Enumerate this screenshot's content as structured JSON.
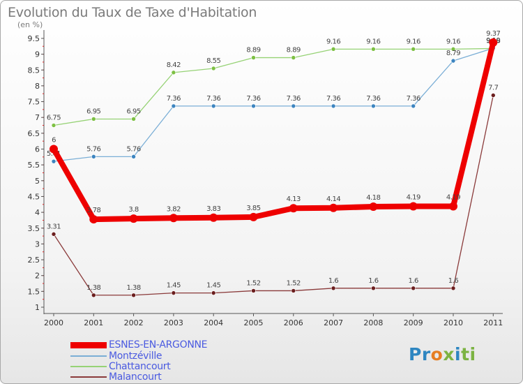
{
  "title": "Evolution du Taux de Taxe d'Habitation",
  "subtitle": "(en %)",
  "logo": {
    "letters": [
      "P",
      "r",
      "o",
      "x",
      "i",
      "t",
      "i"
    ],
    "colors": [
      "#2e86c1",
      "#2e86c1",
      "#e67e22",
      "#7cb342",
      "#2e86c1",
      "#7cb342",
      "#7cb342"
    ]
  },
  "chart_data": {
    "type": "line",
    "title": "Evolution du Taux de Taxe d'Habitation",
    "ylabel": "(en %)",
    "categories": [
      "2000",
      "2001",
      "2002",
      "2003",
      "2004",
      "2005",
      "2006",
      "2007",
      "2008",
      "2009",
      "2010",
      "2011"
    ],
    "ylim": [
      1,
      9.5
    ],
    "yticks": [
      "1",
      "1.5",
      "2",
      "2.5",
      "3",
      "3.5",
      "4",
      "4.5",
      "5",
      "5.5",
      "6",
      "6.5",
      "7",
      "7.5",
      "8",
      "8.5",
      "9",
      "9.5"
    ],
    "grid": false,
    "series": [
      {
        "name": "Chattancourt",
        "color": "#96d275",
        "marker": "#7dc043",
        "values": [
          6.75,
          6.95,
          6.95,
          8.42,
          8.55,
          8.89,
          8.89,
          9.16,
          9.16,
          9.16,
          9.16,
          9.18
        ],
        "labels": [
          "6.75",
          "6.95",
          "6.95",
          "8.42",
          "8.55",
          "8.89",
          "8.89",
          "9.16",
          "9.16",
          "9.16",
          "9.16",
          "9.18"
        ]
      },
      {
        "name": "Montzéville",
        "color": "#7aaed6",
        "marker": "#3d85c0",
        "values": [
          5.61,
          5.76,
          5.76,
          7.36,
          7.36,
          7.36,
          7.36,
          7.36,
          7.36,
          7.36,
          8.79,
          9.19
        ],
        "labels": [
          "5.61",
          "5.76",
          "5.76",
          "7.36",
          "7.36",
          "7.36",
          "7.36",
          "7.36",
          "7.36",
          "7.36",
          "8.79",
          "9.19"
        ]
      },
      {
        "name": "Malancourt",
        "color": "#8a3a3a",
        "marker": "#6b1e1e",
        "values": [
          3.31,
          1.38,
          1.38,
          1.45,
          1.45,
          1.52,
          1.52,
          1.6,
          1.6,
          1.6,
          1.6,
          7.7
        ],
        "labels": [
          "3.31",
          "1.38",
          "1.38",
          "1.45",
          "1.45",
          "1.52",
          "1.52",
          "1.6",
          "1.6",
          "1.6",
          "1.6",
          "7.7"
        ]
      },
      {
        "name": "ESNES-EN-ARGONNE",
        "color": "#ee0000",
        "marker": "#ee0000",
        "values": [
          6,
          3.78,
          3.8,
          3.82,
          3.83,
          3.85,
          4.13,
          4.14,
          4.18,
          4.19,
          4.19,
          9.37
        ],
        "labels": [
          "6",
          "3.78",
          "3.8",
          "3.82",
          "3.83",
          "3.85",
          "4.13",
          "4.14",
          "4.18",
          "4.19",
          "4.19",
          "9.37"
        ]
      }
    ],
    "legend": [
      "ESNES-EN-ARGONNE",
      "Montzéville",
      "Chattancourt",
      "Malancourt"
    ],
    "legend_position": "bottom-left"
  }
}
